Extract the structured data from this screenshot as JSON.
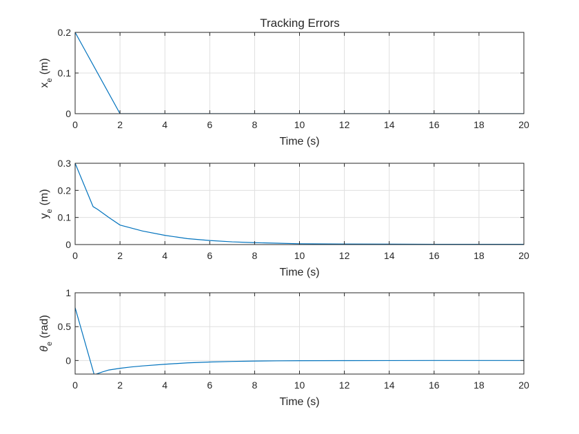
{
  "figure": {
    "title": "Tracking Errors"
  },
  "chart_data": [
    {
      "type": "line",
      "title": "Tracking Errors",
      "xlabel": "Time (s)",
      "ylabel": {
        "main": "x",
        "sub": "e",
        "unit": "(m)"
      },
      "xlim": [
        0,
        20
      ],
      "ylim": [
        0,
        0.2
      ],
      "xticks": [
        "0",
        "2",
        "4",
        "6",
        "8",
        "10",
        "12",
        "14",
        "16",
        "18",
        "20"
      ],
      "yticks": [
        "0",
        "0.1",
        "0.2"
      ],
      "grid": true,
      "line_color": "#0072BD",
      "series": [
        {
          "x": [
            0,
            2,
            20
          ],
          "y": [
            0.2,
            0.0,
            0.0
          ]
        }
      ]
    },
    {
      "type": "line",
      "title": "",
      "xlabel": "Time (s)",
      "ylabel": {
        "main": "y",
        "sub": "e",
        "unit": "(m)"
      },
      "xlim": [
        0,
        20
      ],
      "ylim": [
        0,
        0.3
      ],
      "xticks": [
        "0",
        "2",
        "4",
        "6",
        "8",
        "10",
        "12",
        "14",
        "16",
        "18",
        "20"
      ],
      "yticks": [
        "0",
        "0.1",
        "0.2",
        "0.3"
      ],
      "grid": true,
      "line_color": "#0072BD",
      "series": [
        {
          "x": [
            0,
            0.4,
            0.8,
            1.0,
            1.5,
            2,
            3,
            4,
            5,
            6,
            7,
            8,
            9,
            10,
            12,
            14,
            16,
            18,
            20
          ],
          "y": [
            0.3,
            0.22,
            0.14,
            0.13,
            0.1,
            0.072,
            0.05,
            0.034,
            0.022,
            0.015,
            0.01,
            0.007,
            0.005,
            0.003,
            0.002,
            0.0015,
            0.001,
            0.001,
            0.001
          ]
        }
      ]
    },
    {
      "type": "line",
      "title": "",
      "xlabel": "Time (s)",
      "ylabel": {
        "main": "θ",
        "sub": "e",
        "unit": "(rad)"
      },
      "xlim": [
        0,
        20
      ],
      "ylim": [
        -0.2,
        1
      ],
      "xticks": [
        "0",
        "2",
        "4",
        "6",
        "8",
        "10",
        "12",
        "14",
        "16",
        "18",
        "20"
      ],
      "yticks": [
        "0",
        "0.5",
        "1"
      ],
      "grid": true,
      "line_color": "#0072BD",
      "series": [
        {
          "x": [
            0,
            0.85,
            1.2,
            1.5,
            2,
            2.5,
            3,
            4,
            5,
            6,
            7,
            8,
            9,
            10,
            12,
            14,
            16,
            18,
            20
          ],
          "y": [
            0.78,
            -0.21,
            -0.17,
            -0.14,
            -0.115,
            -0.095,
            -0.08,
            -0.055,
            -0.035,
            -0.022,
            -0.014,
            -0.008,
            -0.005,
            -0.003,
            -0.002,
            -0.001,
            0.0,
            0.0,
            0.0
          ]
        }
      ]
    }
  ]
}
